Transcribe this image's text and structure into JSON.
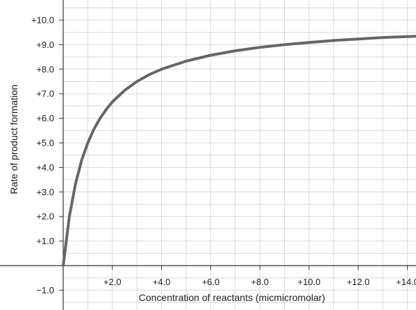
{
  "chart_data": {
    "type": "line",
    "title": "",
    "xlabel": "Concentration of reactants (micmicromolar)",
    "ylabel": "Rate of product formation",
    "xlim": [
      0,
      14.5
    ],
    "ylim": [
      -1.5,
      10.6
    ],
    "x_ticks": [
      {
        "value": 2,
        "label": "+2.0"
      },
      {
        "value": 4,
        "label": "+4.0"
      },
      {
        "value": 6,
        "label": "+6.0"
      },
      {
        "value": 8,
        "label": "+8.0"
      },
      {
        "value": 10,
        "label": "+10.0"
      },
      {
        "value": 12,
        "label": "+12.0"
      },
      {
        "value": 14,
        "label": "+14.0"
      }
    ],
    "y_ticks": [
      {
        "value": 10,
        "label": "+10.0"
      },
      {
        "value": 9,
        "label": "+9.0"
      },
      {
        "value": 8,
        "label": "+8.0"
      },
      {
        "value": 7,
        "label": "+7.0"
      },
      {
        "value": 6,
        "label": "+6.0"
      },
      {
        "value": 5,
        "label": "+5.0"
      },
      {
        "value": 4,
        "label": "+4.0"
      },
      {
        "value": 3,
        "label": "+3.0"
      },
      {
        "value": 2,
        "label": "+2.0"
      },
      {
        "value": 1,
        "label": "+1.0"
      },
      {
        "value": -1,
        "label": "−1.0"
      }
    ],
    "grid": true,
    "colors": {
      "curve": "#666666",
      "grid": "#d9d9d9",
      "axis": "#333333"
    },
    "series": [
      {
        "x": [
          0,
          0.25,
          0.5,
          0.75,
          1.0,
          1.25,
          1.5,
          1.75,
          2.0,
          2.5,
          3.0,
          3.5,
          4.0,
          5.0,
          6.0,
          7.0,
          8.0,
          9.0,
          10.0,
          11.0,
          12.0,
          13.0,
          14.0,
          14.5
        ],
        "y": [
          0,
          2.0,
          3.33,
          4.29,
          5.0,
          5.56,
          6.0,
          6.36,
          6.67,
          7.14,
          7.5,
          7.78,
          8.0,
          8.33,
          8.57,
          8.75,
          8.89,
          9.0,
          9.09,
          9.17,
          9.23,
          9.29,
          9.33,
          9.35
        ]
      }
    ]
  }
}
